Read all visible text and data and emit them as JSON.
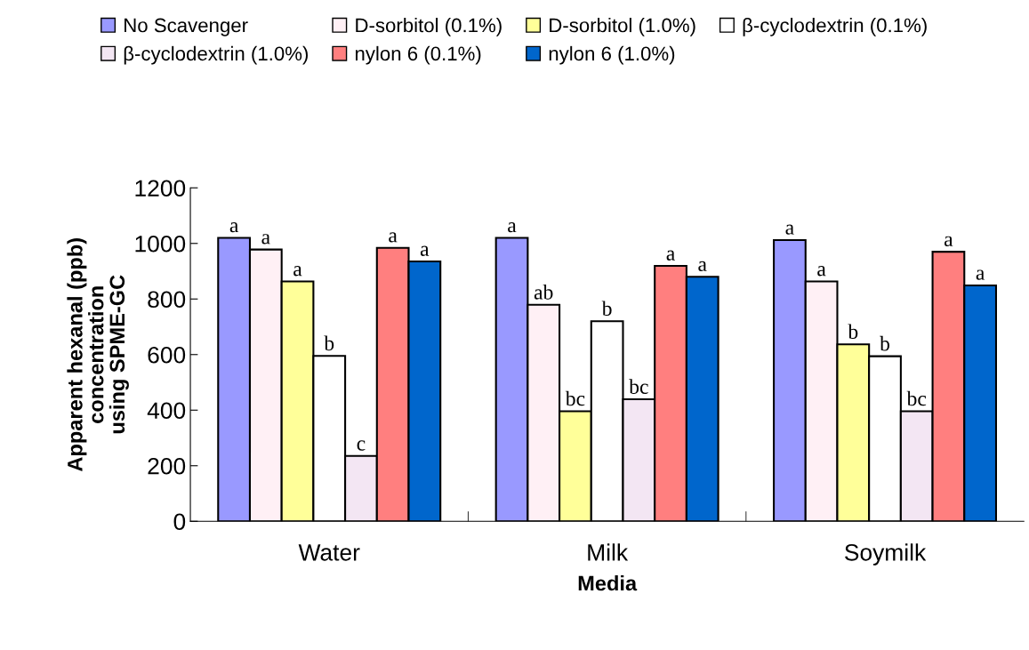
{
  "chart_data": {
    "type": "bar",
    "xlabel": "Media",
    "ylabel": "Apparent hexanal (ppb)\nconcentration\nusing SPME-GC",
    "categories": [
      "Water",
      "Milk",
      "Soymilk"
    ],
    "ylim": [
      0,
      1200
    ],
    "yticks": [
      0,
      200,
      400,
      600,
      800,
      1000,
      1200
    ],
    "grid": false,
    "legend": "top",
    "series": [
      {
        "name": "No Scavenger",
        "color": "#9999ff",
        "values": [
          1020,
          1020,
          1012
        ],
        "value_labels": [
          "a",
          "a",
          "a"
        ]
      },
      {
        "name": "D-sorbitol (0.1%)",
        "color": "#fff0f5",
        "values": [
          978,
          779,
          863
        ],
        "value_labels": [
          "a",
          "ab",
          "a"
        ]
      },
      {
        "name": "D-sorbitol (1.0%)",
        "color": "#ffff99",
        "values": [
          863,
          396,
          637
        ],
        "value_labels": [
          "a",
          "bc",
          "b"
        ]
      },
      {
        "name": "β-cyclodextrin (0.1%)",
        "color": "#ffffff",
        "values": [
          595,
          720,
          594
        ],
        "value_labels": [
          "b",
          "b",
          "b"
        ]
      },
      {
        "name": "β-cyclodextrin (1.0%)",
        "color": "#f3e6f3",
        "values": [
          235,
          439,
          396
        ],
        "value_labels": [
          "c",
          "bc",
          "bc"
        ]
      },
      {
        "name": "nylon 6 (0.1%)",
        "color": "#ff7f7f",
        "values": [
          984,
          919,
          970
        ],
        "value_labels": [
          "a",
          "a",
          "a"
        ]
      },
      {
        "name": "nylon 6 (1.0%)",
        "color": "#0066cc",
        "values": [
          935,
          880,
          849
        ],
        "value_labels": [
          "a",
          "a",
          "a"
        ]
      }
    ]
  }
}
